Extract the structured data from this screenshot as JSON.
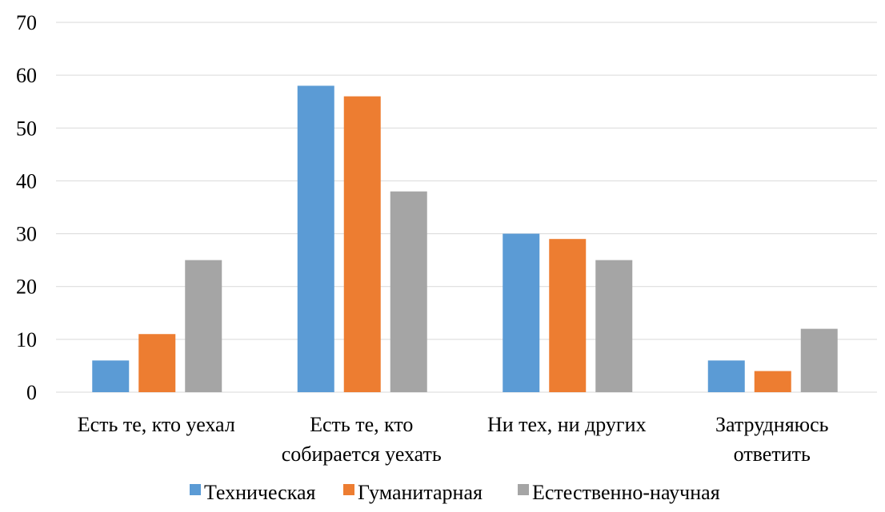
{
  "chart_data": {
    "type": "bar",
    "categories": [
      [
        "Есть те, кто уехал"
      ],
      [
        "Есть те, кто",
        "собирается уехать"
      ],
      [
        "Ни тех, ни других"
      ],
      [
        "Затрудняюсь",
        "ответить"
      ]
    ],
    "series": [
      {
        "name": "Техническая",
        "color": "#5b9bd5",
        "values": [
          6,
          58,
          30,
          6
        ]
      },
      {
        "name": "Гуманитарная",
        "color": "#ed7d31",
        "values": [
          11,
          56,
          29,
          4
        ]
      },
      {
        "name": "Естественно-научная",
        "color": "#a5a5a5",
        "values": [
          25,
          38,
          25,
          12
        ]
      }
    ],
    "yticks": [
      "0",
      "10",
      "20",
      "30",
      "40",
      "50",
      "60",
      "70"
    ],
    "ylim": [
      0,
      70
    ],
    "grid": true,
    "legend_position": "bottom"
  }
}
